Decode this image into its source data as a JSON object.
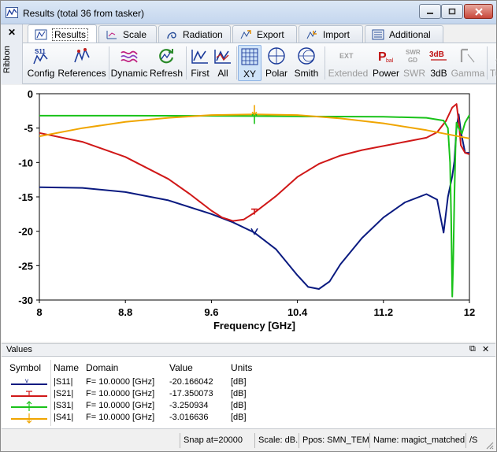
{
  "window": {
    "title": "Results (total 36 from tasker)",
    "ribbon_side_label": "Ribbon",
    "ribbon_close": "✕"
  },
  "tabs": [
    {
      "label": "Results",
      "icon": "results-icon"
    },
    {
      "label": "Scale",
      "icon": "scale-icon"
    },
    {
      "label": "Radiation",
      "icon": "radiation-icon"
    },
    {
      "label": "Export",
      "icon": "export-icon"
    },
    {
      "label": "Import",
      "icon": "import-icon"
    },
    {
      "label": "Additional",
      "icon": "additional-icon"
    }
  ],
  "toolbar": {
    "config": "Config",
    "config_icon_text": "S11",
    "references": "References",
    "dynamic": "Dynamic",
    "refresh": "Refresh",
    "first": "First",
    "all": "All",
    "xy": "XY",
    "polar": "Polar",
    "smith": "Smith",
    "extended": "Extended",
    "extended_icon_text": "EXT",
    "power": "Power",
    "power_icon_text": "P",
    "power_icon_sub": "bal",
    "swr": "SWR",
    "swr_icon_top": "SWR",
    "swr_icon_bottom": "GD",
    "db3": "3dB",
    "db3_icon_text": "3dB",
    "gamma": "Gamma",
    "tuning": "Tuning"
  },
  "chart_data": {
    "type": "line",
    "xlabel": "Frequency [GHz]",
    "ylabel": "",
    "title": "",
    "xlim": [
      8,
      12
    ],
    "ylim": [
      -30,
      0
    ],
    "x_ticks": [
      8,
      8.8,
      9.6,
      10.4,
      11.2,
      12
    ],
    "x_tick_labels": [
      "8",
      "8.8",
      "9.6",
      "10.4",
      "11.2",
      "12"
    ],
    "y_ticks": [
      0,
      -5,
      -10,
      -15,
      -20,
      -25,
      -30
    ],
    "y_tick_labels": [
      "0",
      "-5",
      "-10",
      "-15",
      "-20",
      "-25",
      "-30"
    ],
    "grid": false,
    "series": [
      {
        "name": "|S11|",
        "color": "#0a1a80",
        "x": [
          8,
          8.4,
          8.8,
          9.2,
          9.6,
          9.8,
          10.0,
          10.2,
          10.4,
          10.5,
          10.6,
          10.7,
          10.8,
          11.0,
          11.2,
          11.4,
          11.6,
          11.7,
          11.76,
          11.8,
          11.84,
          11.86,
          11.88,
          11.9,
          11.92,
          11.96,
          12
        ],
        "y": [
          -13.6,
          -13.7,
          -14.3,
          -15.5,
          -17.5,
          -18.7,
          -20.2,
          -22.6,
          -26.4,
          -28.1,
          -28.4,
          -27.3,
          -24.8,
          -21.0,
          -18.0,
          -15.8,
          -14.6,
          -15.4,
          -20.2,
          -15.0,
          -12.0,
          -9.8,
          -5.0,
          -3.0,
          -5.5,
          -8.6,
          -8.6
        ]
      },
      {
        "name": "|S21|",
        "color": "#d01818",
        "x": [
          8,
          8.4,
          8.8,
          9.2,
          9.4,
          9.6,
          9.7,
          9.8,
          9.9,
          10.0,
          10.2,
          10.4,
          10.6,
          10.8,
          11.0,
          11.2,
          11.4,
          11.6,
          11.7,
          11.78,
          11.84,
          11.88,
          11.9,
          11.92,
          11.96,
          12
        ],
        "y": [
          -5.7,
          -7.0,
          -9.2,
          -12.4,
          -14.6,
          -17.0,
          -18.0,
          -18.5,
          -18.3,
          -17.3,
          -14.9,
          -12.1,
          -10.2,
          -9.0,
          -8.2,
          -7.6,
          -7.0,
          -6.4,
          -5.6,
          -4.0,
          -2.0,
          -1.5,
          -4.0,
          -7.5,
          -8.6,
          -8.8
        ]
      },
      {
        "name": "|S31|",
        "color": "#19c219",
        "x": [
          8,
          8.8,
          9.6,
          10.0,
          10.4,
          11.2,
          11.6,
          11.76,
          11.8,
          11.82,
          11.83,
          11.84,
          11.85,
          11.86,
          11.87,
          11.88,
          11.9,
          11.93,
          11.96,
          12
        ],
        "y": [
          -3.2,
          -3.2,
          -3.22,
          -3.25,
          -3.3,
          -3.35,
          -3.5,
          -3.9,
          -5.0,
          -10.0,
          -18.0,
          -29.5,
          -24.0,
          -15.0,
          -8.0,
          -4.2,
          -5.0,
          -5.8,
          -4.2,
          -3.1
        ]
      },
      {
        "name": "|S41|",
        "color": "#f0a500",
        "x": [
          8,
          8.4,
          8.8,
          9.2,
          9.6,
          10.0,
          10.4,
          10.8,
          11.2,
          11.6,
          12
        ],
        "y": [
          -6.2,
          -5.0,
          -4.1,
          -3.5,
          -3.1,
          -3.0,
          -3.1,
          -3.6,
          -4.3,
          -5.3,
          -6.5
        ]
      }
    ],
    "marker_x": 10.0
  },
  "values_panel": {
    "title": "Values",
    "pin_icon": "⧉",
    "close_icon": "✕",
    "columns": [
      "Symbol",
      "Name",
      "Domain",
      "Value",
      "Units"
    ],
    "rows": [
      {
        "name": "|S11|",
        "domain": "F= 10.0000 [GHz]",
        "value": "-20.166042",
        "units": "[dB]",
        "color": "#0a1a80"
      },
      {
        "name": "|S21|",
        "domain": "F= 10.0000 [GHz]",
        "value": "-17.350073",
        "units": "[dB]",
        "color": "#d01818"
      },
      {
        "name": "|S31|",
        "domain": "F= 10.0000 [GHz]",
        "value": "-3.250934",
        "units": "[dB]",
        "color": "#19c219"
      },
      {
        "name": "|S41|",
        "domain": "F= 10.0000 [GHz]",
        "value": "-3.016636",
        "units": "[dB]",
        "color": "#f0a500"
      }
    ]
  },
  "status": {
    "snap": "Snap at=20000",
    "scale": "Scale: dB.",
    "ppos": "Ppos: SMN_TEMPL",
    "name": "Name: magict_matched",
    "extra": "/S"
  }
}
